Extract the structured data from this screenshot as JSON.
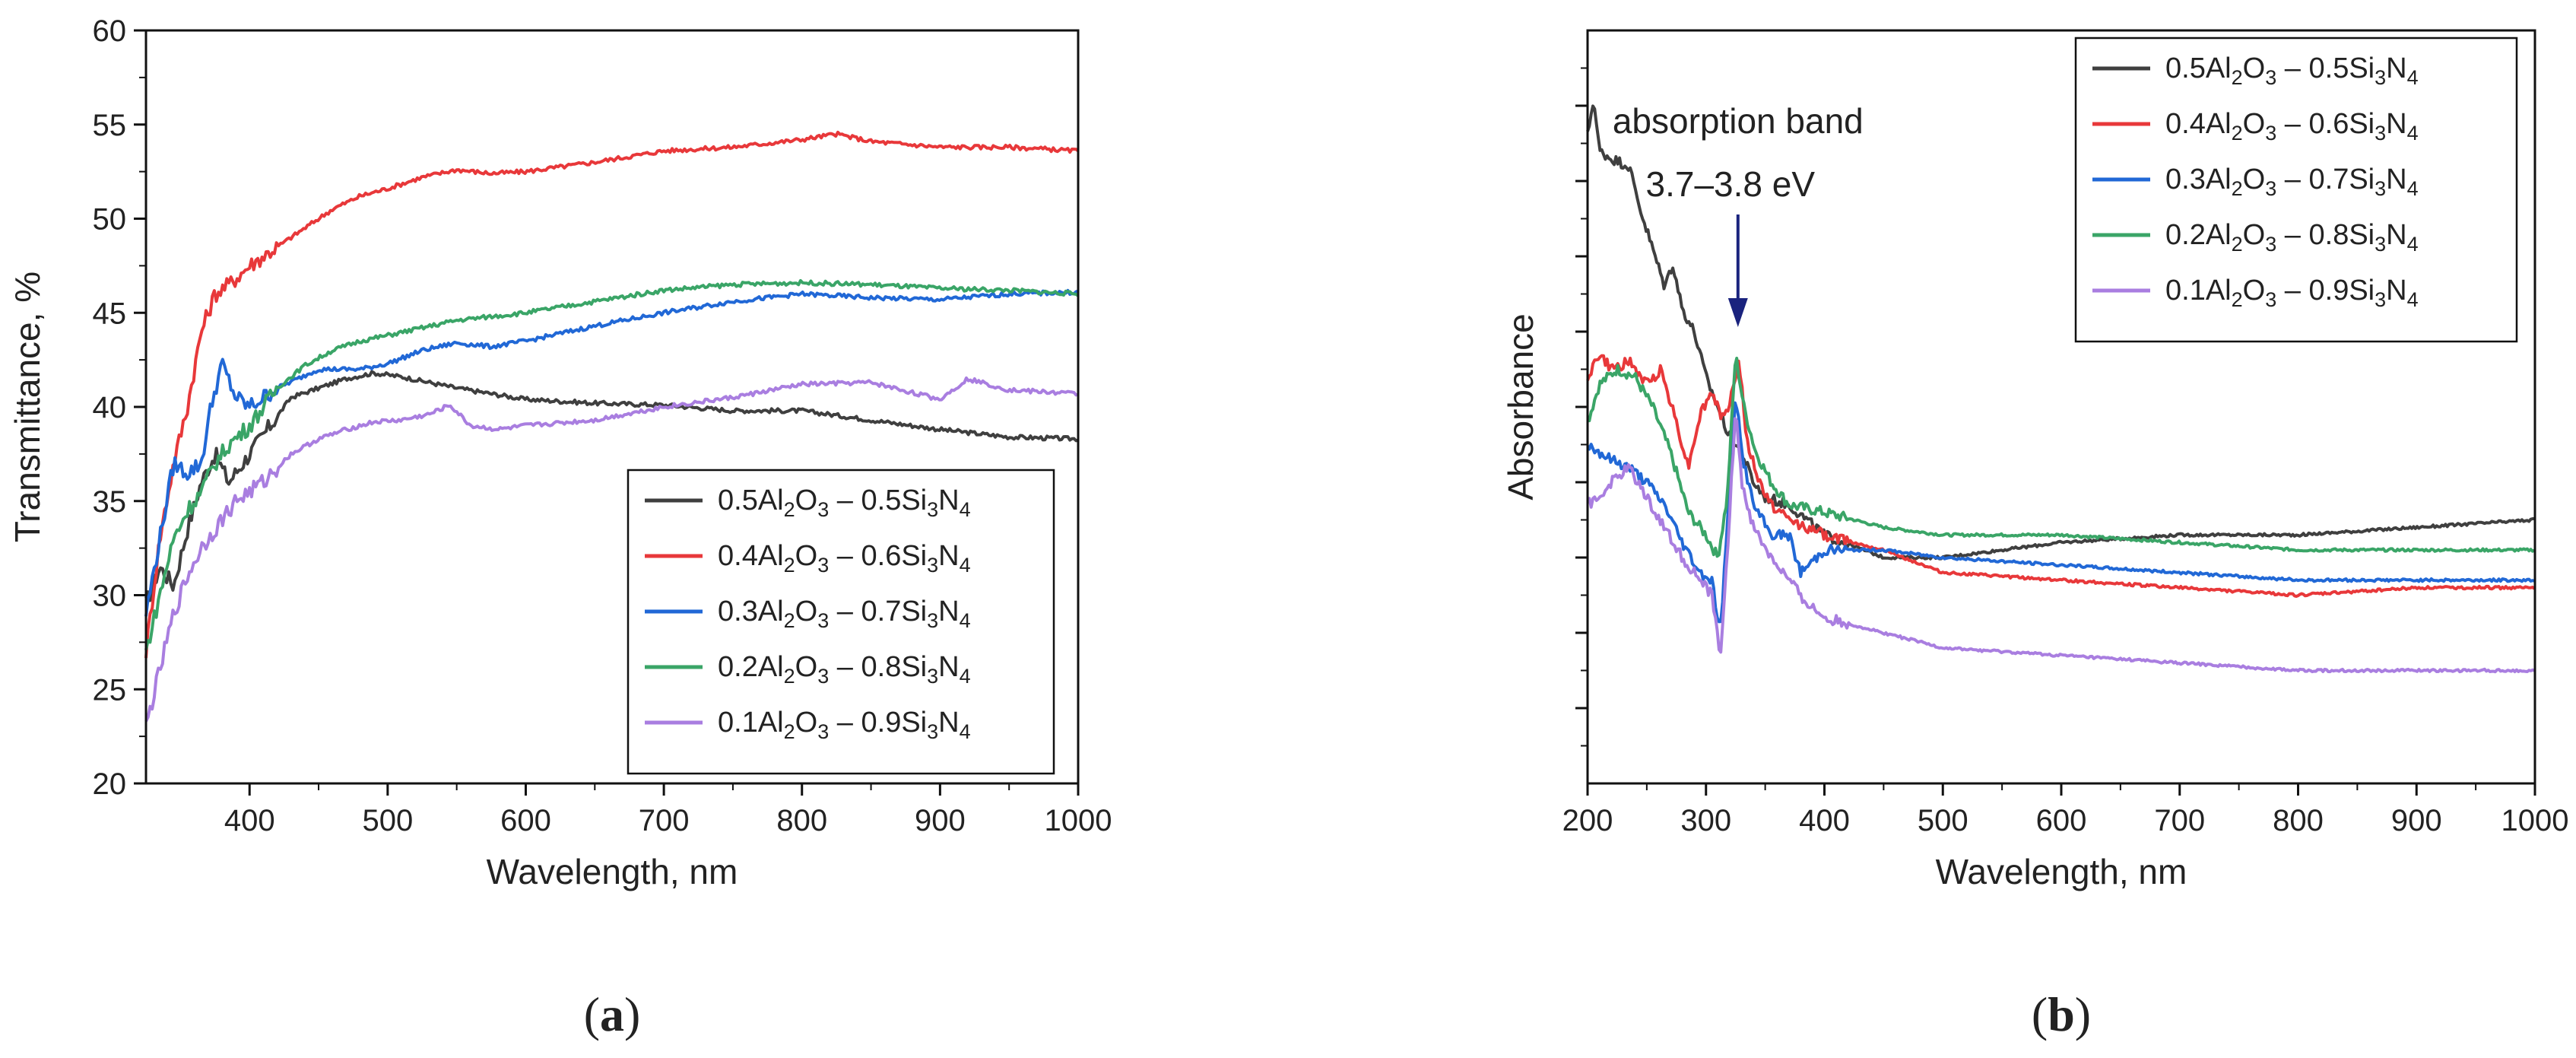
{
  "chart_data": [
    {
      "id": "a",
      "type": "line",
      "panel_label": "(a)",
      "panel_letter": "a",
      "xlabel": "Wavelength, nm",
      "ylabel": "Transmittance, %",
      "xlim": [
        325,
        1000
      ],
      "ylim": [
        20,
        60
      ],
      "xticks": [
        400,
        500,
        600,
        700,
        800,
        900,
        1000
      ],
      "yticks": [
        20,
        25,
        30,
        35,
        40,
        45,
        50,
        55,
        60
      ],
      "legend_position": "bottom-right",
      "series": [
        {
          "name_prefix": "0.5Al",
          "name": "0.5Al2O3 – 0.5Si3N4",
          "color": "#3f3f3f",
          "x": [
            325,
            335,
            345,
            355,
            365,
            375,
            385,
            395,
            410,
            430,
            450,
            470,
            490,
            510,
            530,
            550,
            575,
            600,
            650,
            700,
            750,
            800,
            850,
            900,
            950,
            1000
          ],
          "y": [
            29.5,
            31.5,
            30.5,
            33.5,
            36,
            37.5,
            36,
            37,
            38.5,
            40.5,
            41,
            41.5,
            41.8,
            41.6,
            41.3,
            41,
            40.7,
            40.4,
            40.2,
            40.1,
            39.8,
            39.8,
            39.3,
            38.8,
            38.4,
            38.3
          ]
        },
        {
          "name_prefix": "0.4Al",
          "name": "0.4Al2O3 – 0.6Si3N4",
          "color": "#e8383a",
          "x": [
            325,
            335,
            345,
            355,
            365,
            375,
            385,
            400,
            420,
            440,
            460,
            480,
            500,
            525,
            550,
            575,
            600,
            650,
            700,
            750,
            800,
            825,
            850,
            900,
            950,
            1000
          ],
          "y": [
            27,
            33,
            37,
            40,
            44,
            46,
            46.5,
            47.5,
            48.5,
            49.5,
            50.5,
            51.2,
            51.6,
            52.2,
            52.6,
            52.4,
            52.5,
            53,
            53.6,
            53.8,
            54.2,
            54.5,
            54.1,
            53.8,
            53.8,
            53.6
          ]
        },
        {
          "name_prefix": "0.3Al",
          "name": "0.3Al2O3 – 0.7Si3N4",
          "color": "#2168d6",
          "x": [
            325,
            335,
            345,
            355,
            365,
            372,
            380,
            390,
            400,
            420,
            450,
            480,
            500,
            525,
            550,
            575,
            600,
            650,
            700,
            750,
            800,
            850,
            900,
            950,
            1000
          ],
          "y": [
            29,
            33,
            37,
            36.5,
            37,
            40,
            42.3,
            40.5,
            40,
            41,
            42,
            42,
            42.3,
            43,
            43.4,
            43.2,
            43.5,
            44.3,
            45,
            45.6,
            46,
            45.8,
            45.7,
            46,
            46.1
          ]
        },
        {
          "name_prefix": "0.2Al",
          "name": "0.2Al2O3 – 0.8Si3N4",
          "color": "#3aa567",
          "x": [
            325,
            335,
            345,
            355,
            365,
            375,
            385,
            400,
            420,
            440,
            460,
            480,
            500,
            525,
            550,
            575,
            600,
            650,
            700,
            750,
            800,
            850,
            900,
            950,
            1000
          ],
          "y": [
            27,
            30,
            33,
            34.5,
            35.5,
            37,
            38,
            39,
            41,
            42.2,
            43,
            43.5,
            43.8,
            44.2,
            44.6,
            44.8,
            45,
            45.6,
            46.2,
            46.5,
            46.6,
            46.5,
            46.3,
            46.2,
            46
          ]
        },
        {
          "name_prefix": "0.1Al",
          "name": "0.1Al2O3 – 0.9Si3N4",
          "color": "#a97ee0",
          "x": [
            325,
            335,
            345,
            355,
            365,
            375,
            390,
            410,
            430,
            450,
            470,
            490,
            510,
            530,
            545,
            560,
            580,
            600,
            650,
            700,
            750,
            800,
            850,
            900,
            920,
            950,
            1000
          ],
          "y": [
            23,
            26,
            29,
            31,
            32.5,
            33.5,
            35,
            36,
            37.5,
            38.3,
            38.8,
            39.2,
            39.3,
            39.6,
            40.1,
            39,
            38.8,
            39,
            39.3,
            40,
            40.5,
            41.2,
            41.3,
            40.4,
            41.5,
            40.9,
            40.7
          ]
        }
      ]
    },
    {
      "id": "b",
      "type": "line",
      "panel_label": "(b)",
      "panel_letter": "b",
      "xlabel": "Wavelength, nm",
      "ylabel": "Absorbance",
      "ylabel_note": "y-axis unlabeled numerically; values in arbitrary units",
      "xlim": [
        200,
        1000
      ],
      "ylim": [
        0,
        100
      ],
      "xticks": [
        200,
        300,
        400,
        500,
        600,
        700,
        800,
        900,
        1000
      ],
      "legend_position": "top-right",
      "annotation": {
        "line1": "absorption band",
        "line2": "3.7–3.8 eV",
        "x": 327,
        "color": "#1a237e"
      },
      "series": [
        {
          "name_prefix": "0.5Al",
          "name": "0.5Al2O3 – 0.5Si3N4",
          "color": "#3f3f3f",
          "x": [
            200,
            205,
            210,
            220,
            235,
            245,
            255,
            265,
            272,
            280,
            290,
            300,
            310,
            320,
            330,
            340,
            350,
            370,
            400,
            450,
            500,
            600,
            700,
            800,
            900,
            1000
          ],
          "y": [
            86,
            91,
            84,
            83,
            82,
            76,
            71,
            66,
            69,
            63,
            60,
            54,
            50,
            46,
            44,
            40,
            38,
            37,
            33,
            30,
            30,
            32,
            33,
            33,
            34,
            35
          ]
        },
        {
          "name_prefix": "0.4Al",
          "name": "0.4Al2O3 – 0.6Si3N4",
          "color": "#e8383a",
          "x": [
            200,
            210,
            220,
            235,
            250,
            262,
            275,
            285,
            295,
            305,
            315,
            322,
            328,
            335,
            345,
            355,
            370,
            400,
            450,
            500,
            600,
            700,
            800,
            900,
            1000
          ],
          "y": [
            54,
            57,
            55,
            56,
            53,
            55,
            48,
            42,
            49,
            52,
            48,
            52,
            56,
            45,
            40,
            37,
            35,
            33,
            31,
            28,
            27,
            26,
            25,
            26,
            26
          ]
        },
        {
          "name_prefix": "0.3Al",
          "name": "0.3Al2O3 – 0.7Si3N4",
          "color": "#2168d6",
          "x": [
            200,
            210,
            220,
            235,
            250,
            265,
            280,
            295,
            305,
            312,
            318,
            325,
            330,
            340,
            355,
            370,
            380,
            400,
            450,
            500,
            600,
            700,
            800,
            900,
            1000
          ],
          "y": [
            45,
            44,
            43,
            42,
            40,
            37,
            32,
            28,
            27,
            20,
            34,
            52,
            44,
            37,
            33,
            33,
            28,
            31,
            31,
            30,
            29,
            28,
            27,
            27,
            27
          ]
        },
        {
          "name_prefix": "0.2Al",
          "name": "0.2Al2O3 – 0.8Si3N4",
          "color": "#3aa567",
          "x": [
            200,
            210,
            225,
            240,
            255,
            270,
            285,
            300,
            310,
            318,
            325,
            332,
            342,
            355,
            370,
            400,
            450,
            500,
            600,
            700,
            800,
            900,
            1000
          ],
          "y": [
            48,
            53,
            55,
            54,
            50,
            44,
            36,
            33,
            30,
            38,
            57,
            50,
            44,
            40,
            37,
            36,
            34,
            33,
            33,
            32,
            31,
            31,
            31
          ]
        },
        {
          "name_prefix": "0.1Al",
          "name": "0.1Al2O3 – 0.9Si3N4",
          "color": "#a97ee0",
          "x": [
            200,
            210,
            220,
            235,
            250,
            265,
            280,
            295,
            305,
            312,
            318,
            325,
            330,
            340,
            355,
            370,
            385,
            400,
            450,
            500,
            600,
            700,
            800,
            900,
            1000
          ],
          "y": [
            37,
            38,
            40,
            42,
            38,
            34,
            30,
            27,
            25,
            17,
            30,
            50,
            40,
            34,
            30,
            27,
            24,
            22,
            20,
            18,
            17,
            16,
            15,
            15,
            15
          ]
        }
      ]
    }
  ]
}
